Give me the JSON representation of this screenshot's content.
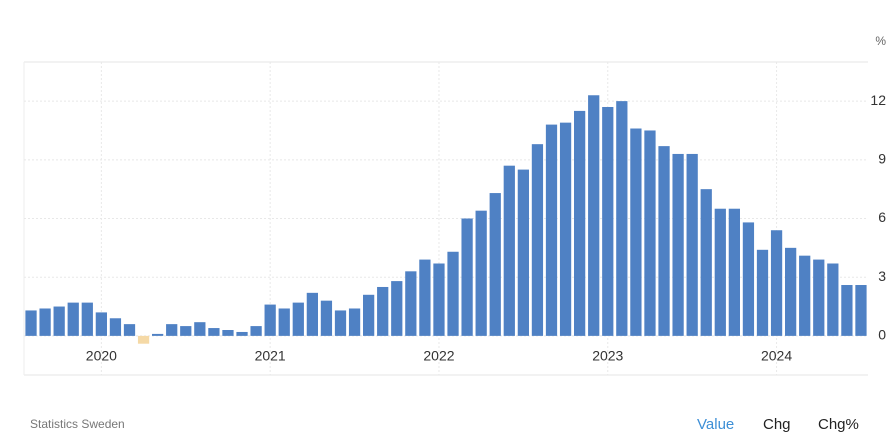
{
  "chart_data": {
    "type": "bar",
    "unit": "%",
    "source": "Statistics Sweden",
    "buttons": [
      "Value",
      "Chg",
      "Chg%"
    ],
    "categories": [
      null,
      null,
      null,
      null,
      null,
      "2020",
      null,
      null,
      null,
      null,
      null,
      null,
      null,
      null,
      null,
      null,
      null,
      "2021",
      null,
      null,
      null,
      null,
      null,
      null,
      null,
      null,
      null,
      null,
      null,
      "2022",
      null,
      null,
      null,
      null,
      null,
      null,
      null,
      null,
      null,
      null,
      null,
      "2023",
      null,
      null,
      null,
      null,
      null,
      null,
      null,
      null,
      null,
      null,
      null,
      "2024",
      null,
      null,
      null,
      null,
      null,
      null
    ],
    "values": [
      1.3,
      1.4,
      1.5,
      1.7,
      1.7,
      1.2,
      0.9,
      0.6,
      -0.4,
      0.1,
      0.6,
      0.5,
      0.7,
      0.4,
      0.3,
      0.2,
      0.5,
      1.6,
      1.4,
      1.7,
      2.2,
      1.8,
      1.3,
      1.4,
      2.1,
      2.5,
      2.8,
      3.3,
      3.9,
      3.7,
      4.3,
      6.0,
      6.4,
      7.3,
      8.7,
      8.5,
      9.8,
      10.8,
      10.9,
      11.5,
      12.3,
      11.7,
      12.0,
      10.6,
      10.5,
      9.7,
      9.3,
      9.3,
      7.5,
      6.5,
      6.5,
      5.8,
      4.4,
      5.4,
      4.5,
      4.1,
      3.9,
      3.7,
      2.6,
      2.6
    ],
    "color": "#4f81c4",
    "negative_color": "#f5d9a6",
    "ylim": [
      -2,
      14
    ],
    "yticks": [
      0,
      3,
      6,
      9,
      12
    ],
    "grid": true
  }
}
